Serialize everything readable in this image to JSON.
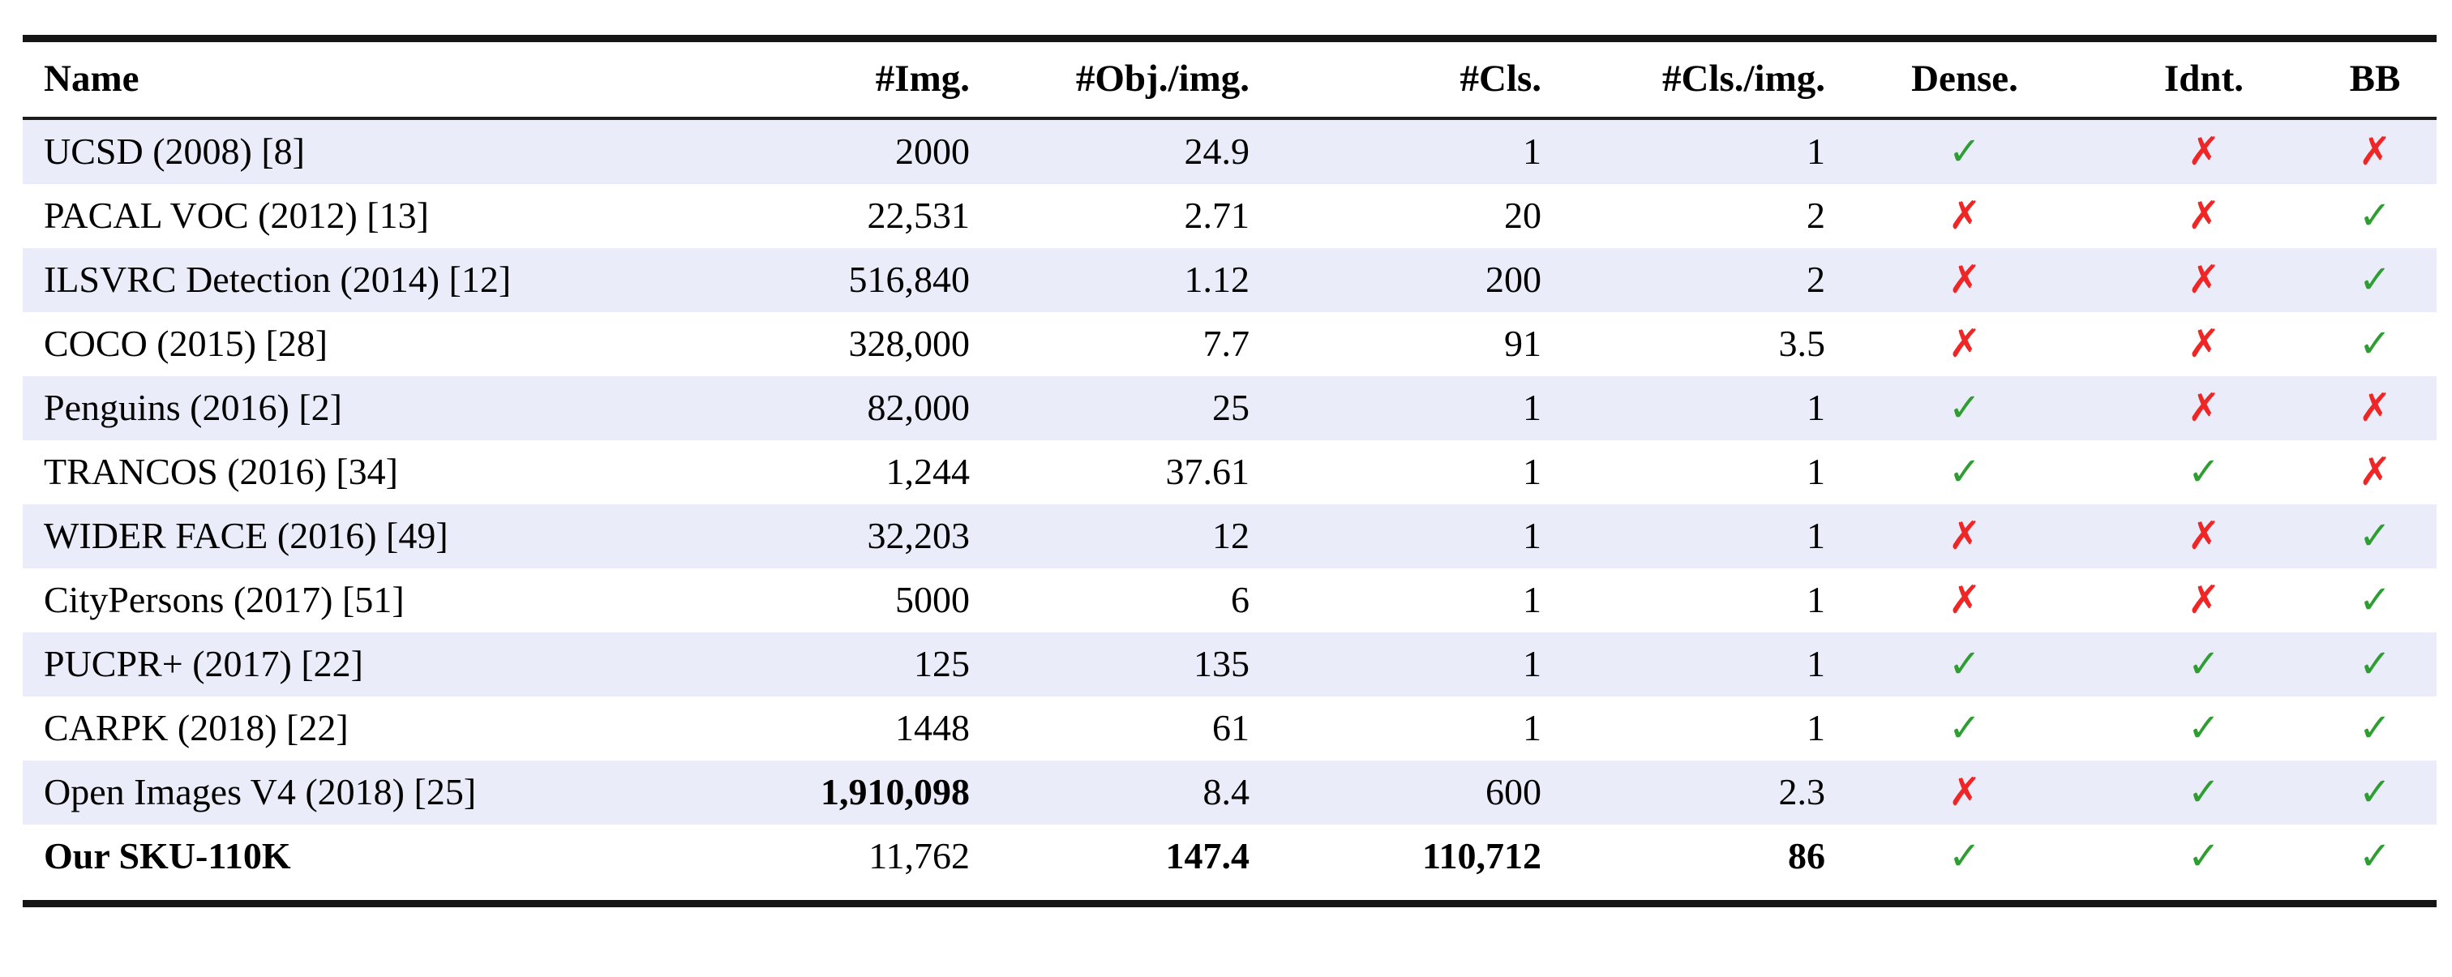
{
  "table": {
    "columns": [
      {
        "label": "Name",
        "align": "left"
      },
      {
        "label": "#Img.",
        "align": "right"
      },
      {
        "label": "#Obj./img.",
        "align": "right"
      },
      {
        "label": "#Cls.",
        "align": "right"
      },
      {
        "label": "#Cls./img.",
        "align": "right"
      },
      {
        "label": "Dense.",
        "align": "center"
      },
      {
        "label": "Idnt.",
        "align": "center"
      },
      {
        "label": "BB",
        "align": "center"
      }
    ],
    "rows": [
      {
        "name": "UCSD (2008) [8]",
        "img": "2000",
        "obj_per_img": "24.9",
        "cls": "1",
        "cls_per_img": "1",
        "dense": "yes",
        "idnt": "no",
        "bb": "no",
        "shaded": true,
        "bold": []
      },
      {
        "name": "PACAL VOC (2012) [13]",
        "img": "22,531",
        "obj_per_img": "2.71",
        "cls": "20",
        "cls_per_img": "2",
        "dense": "no",
        "idnt": "no",
        "bb": "yes",
        "shaded": false,
        "bold": []
      },
      {
        "name": "ILSVRC Detection (2014) [12]",
        "img": "516,840",
        "obj_per_img": "1.12",
        "cls": "200",
        "cls_per_img": "2",
        "dense": "no",
        "idnt": "no",
        "bb": "yes",
        "shaded": true,
        "bold": []
      },
      {
        "name": "COCO (2015) [28]",
        "img": "328,000",
        "obj_per_img": "7.7",
        "cls": "91",
        "cls_per_img": "3.5",
        "dense": "no",
        "idnt": "no",
        "bb": "yes",
        "shaded": false,
        "bold": []
      },
      {
        "name": "Penguins (2016) [2]",
        "img": "82,000",
        "obj_per_img": "25",
        "cls": "1",
        "cls_per_img": "1",
        "dense": "yes",
        "idnt": "no",
        "bb": "no",
        "shaded": true,
        "bold": []
      },
      {
        "name": "TRANCOS (2016) [34]",
        "img": "1,244",
        "obj_per_img": "37.61",
        "cls": "1",
        "cls_per_img": "1",
        "dense": "yes",
        "idnt": "yes",
        "bb": "no",
        "shaded": false,
        "bold": []
      },
      {
        "name": "WIDER FACE (2016) [49]",
        "img": "32,203",
        "obj_per_img": "12",
        "cls": "1",
        "cls_per_img": "1",
        "dense": "no",
        "idnt": "no",
        "bb": "yes",
        "shaded": true,
        "bold": []
      },
      {
        "name": "CityPersons (2017) [51]",
        "img": "5000",
        "obj_per_img": "6",
        "cls": "1",
        "cls_per_img": "1",
        "dense": "no",
        "idnt": "no",
        "bb": "yes",
        "shaded": false,
        "bold": []
      },
      {
        "name": "PUCPR+ (2017) [22]",
        "img": "125",
        "obj_per_img": "135",
        "cls": "1",
        "cls_per_img": "1",
        "dense": "yes",
        "idnt": "yes",
        "bb": "yes",
        "shaded": true,
        "bold": []
      },
      {
        "name": "CARPK (2018) [22]",
        "img": "1448",
        "obj_per_img": "61",
        "cls": "1",
        "cls_per_img": "1",
        "dense": "yes",
        "idnt": "yes",
        "bb": "yes",
        "shaded": false,
        "bold": []
      },
      {
        "name": "Open Images V4 (2018) [25]",
        "img": "1,910,098",
        "obj_per_img": "8.4",
        "cls": "600",
        "cls_per_img": "2.3",
        "dense": "no",
        "idnt": "yes",
        "bb": "yes",
        "shaded": true,
        "bold": [
          "img"
        ]
      },
      {
        "name": "Our SKU-110K",
        "img": "11,762",
        "obj_per_img": "147.4",
        "cls": "110,712",
        "cls_per_img": "86",
        "dense": "yes",
        "idnt": "yes",
        "bb": "yes",
        "shaded": false,
        "bold": [
          "name",
          "obj_per_img",
          "cls",
          "cls_per_img"
        ]
      }
    ]
  },
  "icons": {
    "check-icon": "✓",
    "cross-icon": "✗"
  },
  "colors": {
    "check_green": "#2f9e32",
    "cross_red": "#f02626",
    "row_shade": "#eaedf9"
  }
}
